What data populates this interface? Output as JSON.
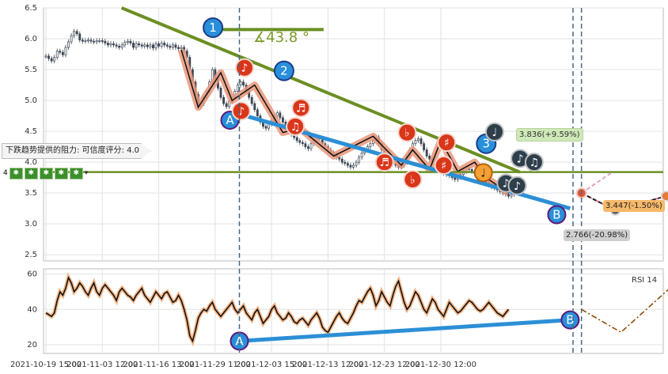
{
  "chart_data": [
    {
      "type": "candlestick",
      "panel": "price",
      "ylim": [
        2.4,
        6.5
      ],
      "yticks": [
        "6.5",
        "6.0",
        "5.5",
        "5.0",
        "4.5",
        "4.0",
        "3.5",
        "3.0",
        "2.5"
      ],
      "ytick_values": [
        6.5,
        6.0,
        5.5,
        5.0,
        4.5,
        4.0,
        3.5,
        3.0,
        2.5
      ],
      "horizontal_line": 3.84,
      "trendline_start": {
        "bar": 10,
        "value": 6.5
      },
      "trendline_end": {
        "bar": 168,
        "value": 3.84
      },
      "trendline_angle_label": "∡43.8 °",
      "close_series": [
        5.72,
        5.68,
        5.64,
        5.7,
        5.8,
        5.78,
        5.74,
        5.86,
        5.95,
        6.05,
        6.12,
        6.08,
        5.98,
        5.96,
        5.97,
        5.98,
        5.96,
        5.95,
        5.97,
        5.97,
        5.96,
        5.93,
        5.9,
        5.92,
        5.9,
        5.88,
        5.86,
        5.9,
        5.94,
        5.96,
        5.93,
        5.86,
        5.92,
        5.9,
        5.88,
        5.9,
        5.87,
        5.9,
        5.85,
        5.92,
        5.88,
        5.93,
        5.9,
        5.88,
        5.86,
        5.9,
        5.86,
        5.84,
        5.86,
        5.8,
        5.7,
        5.5,
        5.3,
        5.1,
        4.9,
        4.95,
        5.05,
        5.15,
        5.3,
        5.5,
        5.35,
        5.2,
        5.05,
        4.95,
        4.9,
        4.98,
        5.05,
        5.15,
        5.25,
        5.3,
        5.25,
        5.15,
        5.05,
        4.95,
        4.85,
        4.75,
        4.65,
        4.58,
        4.55,
        4.62,
        4.68,
        4.75,
        4.8,
        4.72,
        4.65,
        4.58,
        4.5,
        4.45,
        4.4,
        4.35,
        4.32,
        4.3,
        4.25,
        4.22,
        4.3,
        4.35,
        4.4,
        4.38,
        4.3,
        4.25,
        4.2,
        4.15,
        4.12,
        4.08,
        4.05,
        4.0,
        3.98,
        3.95,
        3.92,
        3.95,
        4.0,
        4.08,
        4.15,
        4.2,
        4.25,
        4.3,
        4.35,
        4.4,
        4.3,
        4.2,
        4.1,
        4.05,
        4.0,
        3.98,
        3.95,
        3.92,
        3.95,
        4.0,
        4.1,
        4.2,
        4.3,
        4.35,
        4.38,
        4.3,
        4.2,
        4.1,
        4.05,
        4.0,
        3.95,
        3.9,
        3.85,
        3.82,
        3.8,
        3.78,
        3.75,
        3.72,
        3.75,
        3.8,
        3.85,
        3.9,
        3.88,
        3.85,
        3.82,
        3.8,
        3.75,
        3.7,
        3.68,
        3.65,
        3.6,
        3.58,
        3.55,
        3.52,
        3.5,
        3.48,
        3.45,
        3.48,
        3.5
      ],
      "zigzag_points": [
        [
          48,
          5.82
        ],
        [
          54,
          4.89
        ],
        [
          62,
          5.45
        ],
        [
          66,
          5.0
        ],
        [
          74,
          5.25
        ],
        [
          84,
          4.48
        ],
        [
          90,
          4.55
        ],
        [
          102,
          4.1
        ],
        [
          116,
          4.42
        ],
        [
          126,
          3.95
        ],
        [
          130,
          4.2
        ],
        [
          136,
          3.88
        ],
        [
          140,
          4.35
        ],
        [
          146,
          3.85
        ],
        [
          152,
          4.0
        ],
        [
          156,
          3.75
        ],
        [
          164,
          3.5
        ]
      ],
      "lines": [
        {
          "name": "AB",
          "from": {
            "label": "A",
            "bar": 54,
            "value": 4.78
          },
          "to": {
            "label": "B",
            "bar": 162,
            "value": 3.25
          }
        },
        {
          "name": "1-line",
          "from": {
            "bar": 46,
            "value": 6.15
          },
          "to": {
            "bar": 76,
            "value": 6.15
          }
        }
      ],
      "projection": {
        "start": {
          "bar": 166,
          "value": 3.5
        },
        "up": [
          {
            "bar": 177,
            "value": 3.84
          }
        ],
        "mid": [
          {
            "bar": 178,
            "value": 3.22
          },
          {
            "bar": 196,
            "value": 3.45
          },
          {
            "bar": 210,
            "value": 3.24
          }
        ],
        "down": [
          {
            "bar": 178,
            "value": 3.22
          },
          {
            "bar": 196,
            "value": 3.45
          },
          {
            "bar": 212,
            "value": 2.77
          }
        ]
      },
      "targets": {
        "up": "3.836(+9.59%)",
        "mid": "3.447(-1.50%)",
        "down": "2.766(-20.98%)"
      },
      "markers": [
        {
          "label": "1",
          "type": "wave",
          "bar": 48,
          "value": 6.18
        },
        {
          "label": "2",
          "type": "wave",
          "bar": 76,
          "value": 5.48
        },
        {
          "label": "3",
          "type": "wave",
          "bar": 137,
          "value": 4.3
        },
        {
          "label": "A",
          "type": "point",
          "bar": 54,
          "value": 4.68
        },
        {
          "label": "B",
          "type": "point",
          "bar": 162,
          "value": 3.15
        },
        {
          "label": "♪",
          "type": "note",
          "bar": 62,
          "value": 5.53
        },
        {
          "label": "♪",
          "type": "note",
          "bar": 58,
          "value": 4.83
        },
        {
          "label": "♬",
          "type": "note",
          "bar": 82,
          "value": 4.88
        },
        {
          "label": "♫",
          "type": "note",
          "bar": 80,
          "value": 4.58
        },
        {
          "label": "♬",
          "type": "note",
          "bar": 106,
          "value": 4.0
        },
        {
          "label": "♭",
          "type": "note",
          "bar": 114,
          "value": 4.48
        },
        {
          "label": "♭",
          "type": "note",
          "bar": 116,
          "value": 3.72
        },
        {
          "label": "♯",
          "type": "note",
          "bar": 128,
          "value": 4.32
        },
        {
          "label": "♯",
          "type": "note",
          "bar": 127,
          "value": 3.95
        },
        {
          "label": "♩",
          "type": "note-orange",
          "bar": 136,
          "value": 3.83
        },
        {
          "label": "♩",
          "type": "note-dark",
          "bar": 140,
          "value": 4.49
        },
        {
          "label": "♪",
          "type": "note-dark",
          "bar": 149,
          "value": 4.06
        },
        {
          "label": "♫",
          "type": "note-dark",
          "bar": 154,
          "value": 4.0
        },
        {
          "label": "♪",
          "type": "note-dark",
          "bar": 144,
          "value": 3.66
        },
        {
          "label": "♪",
          "type": "note-dark",
          "bar": 148,
          "value": 3.62
        }
      ],
      "dashed_vlines": [
        54,
        163,
        166
      ],
      "resistance_note": "下跌趋势提供的阻力: 可信度评分: 4.0",
      "icon_strip_label": "4"
    },
    {
      "type": "line",
      "panel": "rsi",
      "name": "RSI 14",
      "ylim": [
        15,
        63
      ],
      "yticks": [
        "60",
        "40",
        "20"
      ],
      "ytick_values": [
        60,
        40,
        20
      ],
      "values": [
        38,
        37,
        36,
        38,
        45,
        50,
        48,
        52,
        58,
        55,
        50,
        52,
        55,
        53,
        50,
        48,
        52,
        55,
        50,
        48,
        52,
        54,
        52,
        50,
        48,
        45,
        50,
        52,
        50,
        48,
        47,
        45,
        48,
        50,
        52,
        48,
        46,
        44,
        47,
        50,
        48,
        46,
        49,
        50,
        47,
        44,
        45,
        48,
        45,
        40,
        34,
        25,
        22,
        28,
        35,
        38,
        40,
        39,
        42,
        44,
        40,
        38,
        36,
        38,
        40,
        42,
        44,
        40,
        38,
        40,
        42,
        38,
        36,
        34,
        38,
        40,
        36,
        32,
        34,
        36,
        40,
        42,
        38,
        36,
        34,
        35,
        38,
        36,
        33,
        32,
        34,
        35,
        33,
        31,
        34,
        36,
        38,
        35,
        30,
        28,
        27,
        30,
        33,
        36,
        38,
        35,
        33,
        32,
        35,
        38,
        42,
        45,
        44,
        47,
        50,
        52,
        48,
        42,
        45,
        50,
        47,
        44,
        42,
        48,
        53,
        56,
        50,
        44,
        40,
        42,
        46,
        50,
        48,
        44,
        40,
        38,
        42,
        46,
        44,
        40,
        38,
        36,
        40,
        44,
        42,
        40,
        38,
        39,
        41,
        43,
        45,
        44,
        42,
        40,
        39,
        40,
        42,
        44,
        42,
        40,
        38,
        37,
        36,
        38,
        40
      ],
      "projection": [
        [
          166,
          40
        ],
        [
          180,
          27
        ],
        [
          198,
          53
        ],
        [
          212,
          15
        ]
      ],
      "ab_line": {
        "from": {
          "label": "A",
          "bar": 54,
          "value": 22
        },
        "to": {
          "label": "B",
          "bar": 162,
          "value": 34
        }
      }
    }
  ],
  "x_axis": {
    "labels": [
      "2021-10-19 15:00",
      "2021-11-03 12:00",
      "2021-11-16 13:00",
      "2021-11-29 11:00",
      "2021-12-03 15:00",
      "2021-12-13 12:00",
      "2021-12-23 12:00",
      "2021-12-30 12:00"
    ],
    "label_bars": [
      0,
      20,
      40,
      60,
      80,
      100,
      120,
      140
    ],
    "total_bars": 218
  },
  "colors": {
    "trendline": "#6b8f23",
    "ab_line": "#2c8fd6",
    "zigzag_fill": "#e9967a",
    "note_red": "#d9361a",
    "note_dark": "#2e3e4b",
    "note_orange": "#f5a033",
    "wave_blue": "#2a8fd9",
    "candle": "#3d4654",
    "rsi_line": "#111111",
    "rsi_glow": "#f4a46a",
    "projection_up": "#e0a0c0",
    "projection_down": "#e07aa8",
    "grid": "#e2e2e2"
  }
}
